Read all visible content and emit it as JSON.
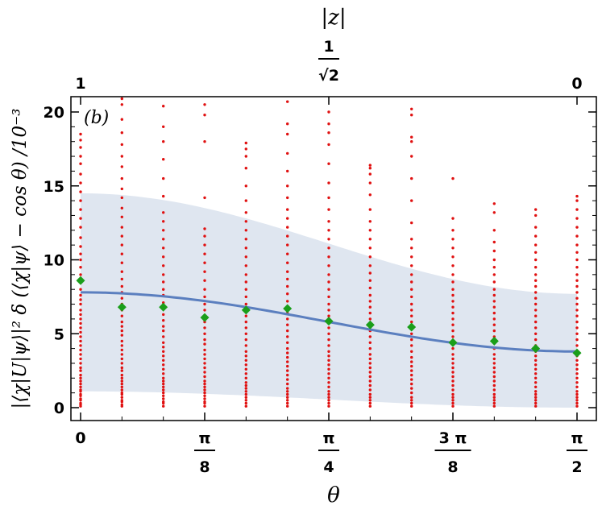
{
  "chart_data": {
    "type": "scatter",
    "panel_label": "(b)",
    "xlabel": "θ",
    "ylabel": "|⟨χ|U|ψ⟩|² δ (⟨χ|ψ⟩ − cos θ) /10⁻³",
    "top_axis_label": "|z|",
    "xlim": [
      0,
      1.5708
    ],
    "ylim": [
      -0.3,
      21
    ],
    "x_ticks": [
      {
        "value": 0,
        "label": "0"
      },
      {
        "value": 0.3927,
        "num": "π",
        "den": "8"
      },
      {
        "value": 0.7854,
        "num": "π",
        "den": "4"
      },
      {
        "value": 1.1781,
        "num": "3 π",
        "den": "8"
      },
      {
        "value": 1.5708,
        "num": "π",
        "den": "2"
      }
    ],
    "y_ticks": [
      0,
      5,
      10,
      15,
      20
    ],
    "top_ticks": [
      {
        "value": 0,
        "label": "1"
      },
      {
        "value": 0.7854,
        "num": "1",
        "den": "√2"
      },
      {
        "value": 1.5708,
        "label": "0"
      }
    ],
    "colors": {
      "samples": "#e01010",
      "means": "#1a9e1a",
      "curve": "#5b7fbf",
      "band": "#dfe6f0"
    },
    "series": [
      {
        "name": "",
        "kind": "samples",
        "columns": [
          {
            "x": 0.0,
            "values": [
              0.1,
              0.2,
              0.3,
              0.5,
              0.6,
              0.8,
              0.9,
              1.1,
              1.2,
              1.4,
              1.6,
              1.8,
              2.0,
              2.2,
              2.5,
              2.7,
              3.0,
              3.3,
              3.6,
              3.9,
              4.2,
              4.5,
              4.8,
              5.1,
              5.4,
              5.7,
              6.0,
              6.3,
              6.6,
              7.0,
              7.3,
              7.6,
              8.0,
              8.5,
              9.0,
              9.5,
              10.0,
              10.4,
              10.9,
              11.5,
              12.2,
              12.8,
              13.4,
              14.0,
              14.6,
              15.2,
              15.8,
              16.5,
              17.0,
              17.6,
              18.1,
              18.5
            ]
          },
          {
            "x": 0.1309,
            "values": [
              0.1,
              0.2,
              0.4,
              0.5,
              0.7,
              0.9,
              1.0,
              1.2,
              1.4,
              1.6,
              1.8,
              2.0,
              2.2,
              2.5,
              2.7,
              3.0,
              3.3,
              3.6,
              3.9,
              4.2,
              4.5,
              4.9,
              5.2,
              5.5,
              5.8,
              6.2,
              6.6,
              7.0,
              7.4,
              7.8,
              8.2,
              8.7,
              9.2,
              9.8,
              10.4,
              11.0,
              11.6,
              12.2,
              12.9,
              13.5,
              14.2,
              14.8,
              15.5,
              16.3,
              17.0,
              17.8,
              18.6,
              19.5,
              20.5,
              20.9
            ]
          },
          {
            "x": 0.2618,
            "values": [
              0.1,
              0.3,
              0.4,
              0.6,
              0.8,
              1.0,
              1.2,
              1.4,
              1.6,
              1.8,
              2.0,
              2.3,
              2.6,
              2.9,
              3.2,
              3.5,
              3.8,
              4.1,
              4.4,
              4.8,
              5.2,
              5.5,
              5.9,
              6.3,
              6.7,
              7.1,
              7.6,
              8.0,
              8.5,
              9.0,
              9.6,
              10.2,
              10.8,
              11.4,
              12.0,
              12.6,
              13.2,
              14.3,
              15.5,
              16.8,
              18.0,
              19.0,
              20.4
            ]
          },
          {
            "x": 0.3927,
            "values": [
              0.1,
              0.3,
              0.4,
              0.6,
              0.8,
              1.0,
              1.2,
              1.4,
              1.6,
              1.8,
              2.1,
              2.4,
              2.7,
              3.0,
              3.3,
              3.6,
              3.9,
              4.3,
              4.6,
              5.0,
              5.4,
              5.8,
              6.2,
              6.6,
              7.0,
              7.5,
              8.0,
              8.6,
              9.2,
              9.8,
              10.4,
              11.0,
              11.6,
              12.1,
              14.2,
              18.0,
              19.8,
              20.5
            ]
          },
          {
            "x": 0.5236,
            "values": [
              0.1,
              0.3,
              0.5,
              0.7,
              0.9,
              1.1,
              1.3,
              1.5,
              1.7,
              2.0,
              2.3,
              2.6,
              2.9,
              3.2,
              3.5,
              3.8,
              4.2,
              4.6,
              5.0,
              5.4,
              5.8,
              6.2,
              6.6,
              7.0,
              7.5,
              8.0,
              8.5,
              9.0,
              9.6,
              10.2,
              10.8,
              11.4,
              12.0,
              12.6,
              13.2,
              14.0,
              15.0,
              16.2,
              17.0,
              17.5,
              17.9
            ]
          },
          {
            "x": 0.6545,
            "values": [
              0.1,
              0.3,
              0.5,
              0.7,
              0.9,
              1.1,
              1.3,
              1.6,
              1.9,
              2.2,
              2.5,
              2.8,
              3.1,
              3.4,
              3.7,
              4.0,
              4.4,
              4.8,
              5.2,
              5.6,
              6.0,
              6.4,
              6.8,
              7.2,
              7.7,
              8.2,
              8.7,
              9.2,
              9.8,
              10.4,
              11.0,
              11.6,
              12.2,
              12.8,
              13.4,
              14.2,
              15.0,
              16.0,
              17.2,
              18.5,
              19.2,
              20.7
            ]
          },
          {
            "x": 0.7854,
            "values": [
              0.1,
              0.3,
              0.5,
              0.7,
              0.9,
              1.1,
              1.4,
              1.7,
              2.0,
              2.3,
              2.6,
              2.9,
              3.2,
              3.5,
              3.8,
              4.2,
              4.6,
              5.0,
              5.4,
              5.8,
              6.2,
              6.6,
              7.0,
              7.5,
              8.0,
              8.5,
              9.0,
              9.6,
              10.2,
              10.8,
              11.4,
              12.0,
              12.6,
              13.4,
              14.2,
              15.2,
              16.5,
              17.8,
              18.6,
              19.2,
              20.0
            ]
          },
          {
            "x": 0.9163,
            "values": [
              0.1,
              0.3,
              0.5,
              0.7,
              0.9,
              1.2,
              1.5,
              1.8,
              2.1,
              2.4,
              2.7,
              3.0,
              3.3,
              3.6,
              4.0,
              4.4,
              4.8,
              5.2,
              5.6,
              6.0,
              6.4,
              6.8,
              7.2,
              7.6,
              8.1,
              8.6,
              9.1,
              9.6,
              10.2,
              10.8,
              11.4,
              12.0,
              12.6,
              13.4,
              14.4,
              15.2,
              15.8,
              16.2,
              16.4
            ]
          },
          {
            "x": 1.0472,
            "values": [
              0.1,
              0.3,
              0.5,
              0.7,
              1.0,
              1.3,
              1.6,
              1.9,
              2.2,
              2.5,
              2.8,
              3.1,
              3.4,
              3.8,
              4.2,
              4.6,
              5.0,
              5.4,
              5.8,
              6.2,
              6.6,
              7.0,
              7.5,
              8.0,
              8.5,
              9.0,
              9.6,
              10.2,
              10.8,
              11.4,
              12.5,
              14.0,
              15.5,
              17.0,
              18.0,
              18.3,
              19.8,
              20.2
            ]
          },
          {
            "x": 1.1781,
            "values": [
              0.1,
              0.3,
              0.5,
              0.7,
              0.9,
              1.2,
              1.5,
              1.8,
              2.1,
              2.4,
              2.7,
              3.0,
              3.3,
              3.6,
              4.0,
              4.4,
              4.8,
              5.2,
              5.6,
              6.0,
              6.4,
              6.8,
              7.2,
              7.6,
              8.0,
              8.5,
              9.0,
              9.6,
              10.2,
              10.8,
              11.4,
              12.0,
              12.8,
              15.5
            ]
          },
          {
            "x": 1.309,
            "values": [
              0.1,
              0.3,
              0.5,
              0.7,
              0.9,
              1.2,
              1.5,
              1.8,
              2.1,
              2.4,
              2.7,
              3.0,
              3.3,
              3.6,
              4.0,
              4.4,
              4.8,
              5.2,
              5.6,
              6.0,
              6.4,
              6.8,
              7.2,
              7.6,
              8.0,
              8.5,
              9.0,
              9.5,
              10.0,
              10.6,
              11.2,
              12.0,
              13.2,
              13.8
            ]
          },
          {
            "x": 1.4399,
            "values": [
              0.1,
              0.3,
              0.5,
              0.7,
              0.9,
              1.1,
              1.4,
              1.7,
              2.0,
              2.3,
              2.6,
              2.9,
              3.2,
              3.5,
              3.8,
              4.2,
              4.6,
              5.0,
              5.4,
              5.8,
              6.2,
              6.6,
              7.0,
              7.4,
              7.8,
              8.2,
              8.6,
              9.0,
              9.5,
              10.0,
              10.5,
              11.0,
              11.6,
              12.2,
              13.0,
              13.4
            ]
          },
          {
            "x": 1.5708,
            "values": [
              0.1,
              0.3,
              0.5,
              0.7,
              0.9,
              1.1,
              1.4,
              1.7,
              2.0,
              2.3,
              2.6,
              2.9,
              3.2,
              3.5,
              3.8,
              4.2,
              4.6,
              5.0,
              5.4,
              5.8,
              6.2,
              6.6,
              7.0,
              7.4,
              7.8,
              8.2,
              8.6,
              9.0,
              9.5,
              10.0,
              10.5,
              11.0,
              11.6,
              12.2,
              12.8,
              13.4,
              14.0,
              14.3
            ]
          }
        ]
      },
      {
        "name": "",
        "kind": "means",
        "points": [
          {
            "x": 0.0,
            "y": 8.6
          },
          {
            "x": 0.1309,
            "y": 6.8
          },
          {
            "x": 0.2618,
            "y": 6.8
          },
          {
            "x": 0.3927,
            "y": 6.1
          },
          {
            "x": 0.5236,
            "y": 6.6
          },
          {
            "x": 0.6545,
            "y": 6.7
          },
          {
            "x": 0.7854,
            "y": 5.85
          },
          {
            "x": 0.9163,
            "y": 5.6
          },
          {
            "x": 1.0472,
            "y": 5.45
          },
          {
            "x": 1.1781,
            "y": 4.4
          },
          {
            "x": 1.309,
            "y": 4.5
          },
          {
            "x": 1.4399,
            "y": 4.0
          },
          {
            "x": 1.5708,
            "y": 3.7
          }
        ]
      },
      {
        "name": "",
        "kind": "curve",
        "model": "mean = 7.8 - 4.0*sin²θ ; band upper = 14.5 - 6.8*sin²θ ; band lower = 1.1*cos²θ",
        "mean_endpoints": [
          7.8,
          3.8
        ],
        "band_upper_endpoints": [
          14.5,
          7.7
        ],
        "band_lower_endpoints": [
          1.1,
          0.0
        ]
      }
    ]
  }
}
